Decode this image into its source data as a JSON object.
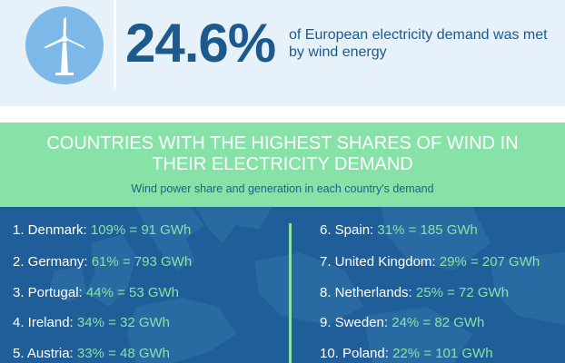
{
  "header": {
    "icon": "wind-turbine-icon",
    "big_stat": "24.6%",
    "stat_text": "of European electricity demand was met by wind energy"
  },
  "colors": {
    "light_blue_band": "#e6f1f9",
    "dark_blue": "#1c5a8e",
    "icon_circle": "#7cb9e8",
    "green_band": "#86e2a6",
    "map_blue": "#1f5e98",
    "value_green": "#86e2a6"
  },
  "section": {
    "title": "COUNTRIES WITH THE HIGHEST SHARES OF WIND IN THEIR ELECTRICITY DEMAND",
    "subtitle": "Wind power share and generation in each country's demand"
  },
  "rows": [
    {
      "name": "1. Denmark:",
      "value": "109% = 91 GWh"
    },
    {
      "name": "2. Germany:",
      "value": "61% = 793 GWh"
    },
    {
      "name": "3. Portugal:",
      "value": "44% = 53 GWh"
    },
    {
      "name": "4. Ireland:",
      "value": "34% = 32 GWh"
    },
    {
      "name": "5. Austria:",
      "value": "33% = 48 GWh"
    },
    {
      "name": "6. Spain:",
      "value": "31% = 185 GWh"
    },
    {
      "name": "7. United Kingdom:",
      "value": "29% = 207 GWh"
    },
    {
      "name": "8. Netherlands:",
      "value": "25% = 72 GWh"
    },
    {
      "name": "9. Sweden:",
      "value": "24% = 82 GWh"
    },
    {
      "name": "10. Poland:",
      "value": "22% = 101 GWh"
    }
  ],
  "chart_data": {
    "type": "table",
    "title": "COUNTRIES WITH THE HIGHEST SHARES OF WIND IN THEIR ELECTRICITY DEMAND",
    "subtitle": "Wind power share and generation in each country's demand",
    "categories": [
      "Denmark",
      "Germany",
      "Portugal",
      "Ireland",
      "Austria",
      "Spain",
      "United Kingdom",
      "Netherlands",
      "Sweden",
      "Poland"
    ],
    "series": [
      {
        "name": "share_percent",
        "values": [
          109,
          61,
          44,
          34,
          33,
          31,
          29,
          25,
          24,
          22
        ]
      },
      {
        "name": "generation_gwh",
        "values": [
          91,
          793,
          53,
          32,
          48,
          185,
          207,
          72,
          82,
          101
        ]
      }
    ]
  }
}
